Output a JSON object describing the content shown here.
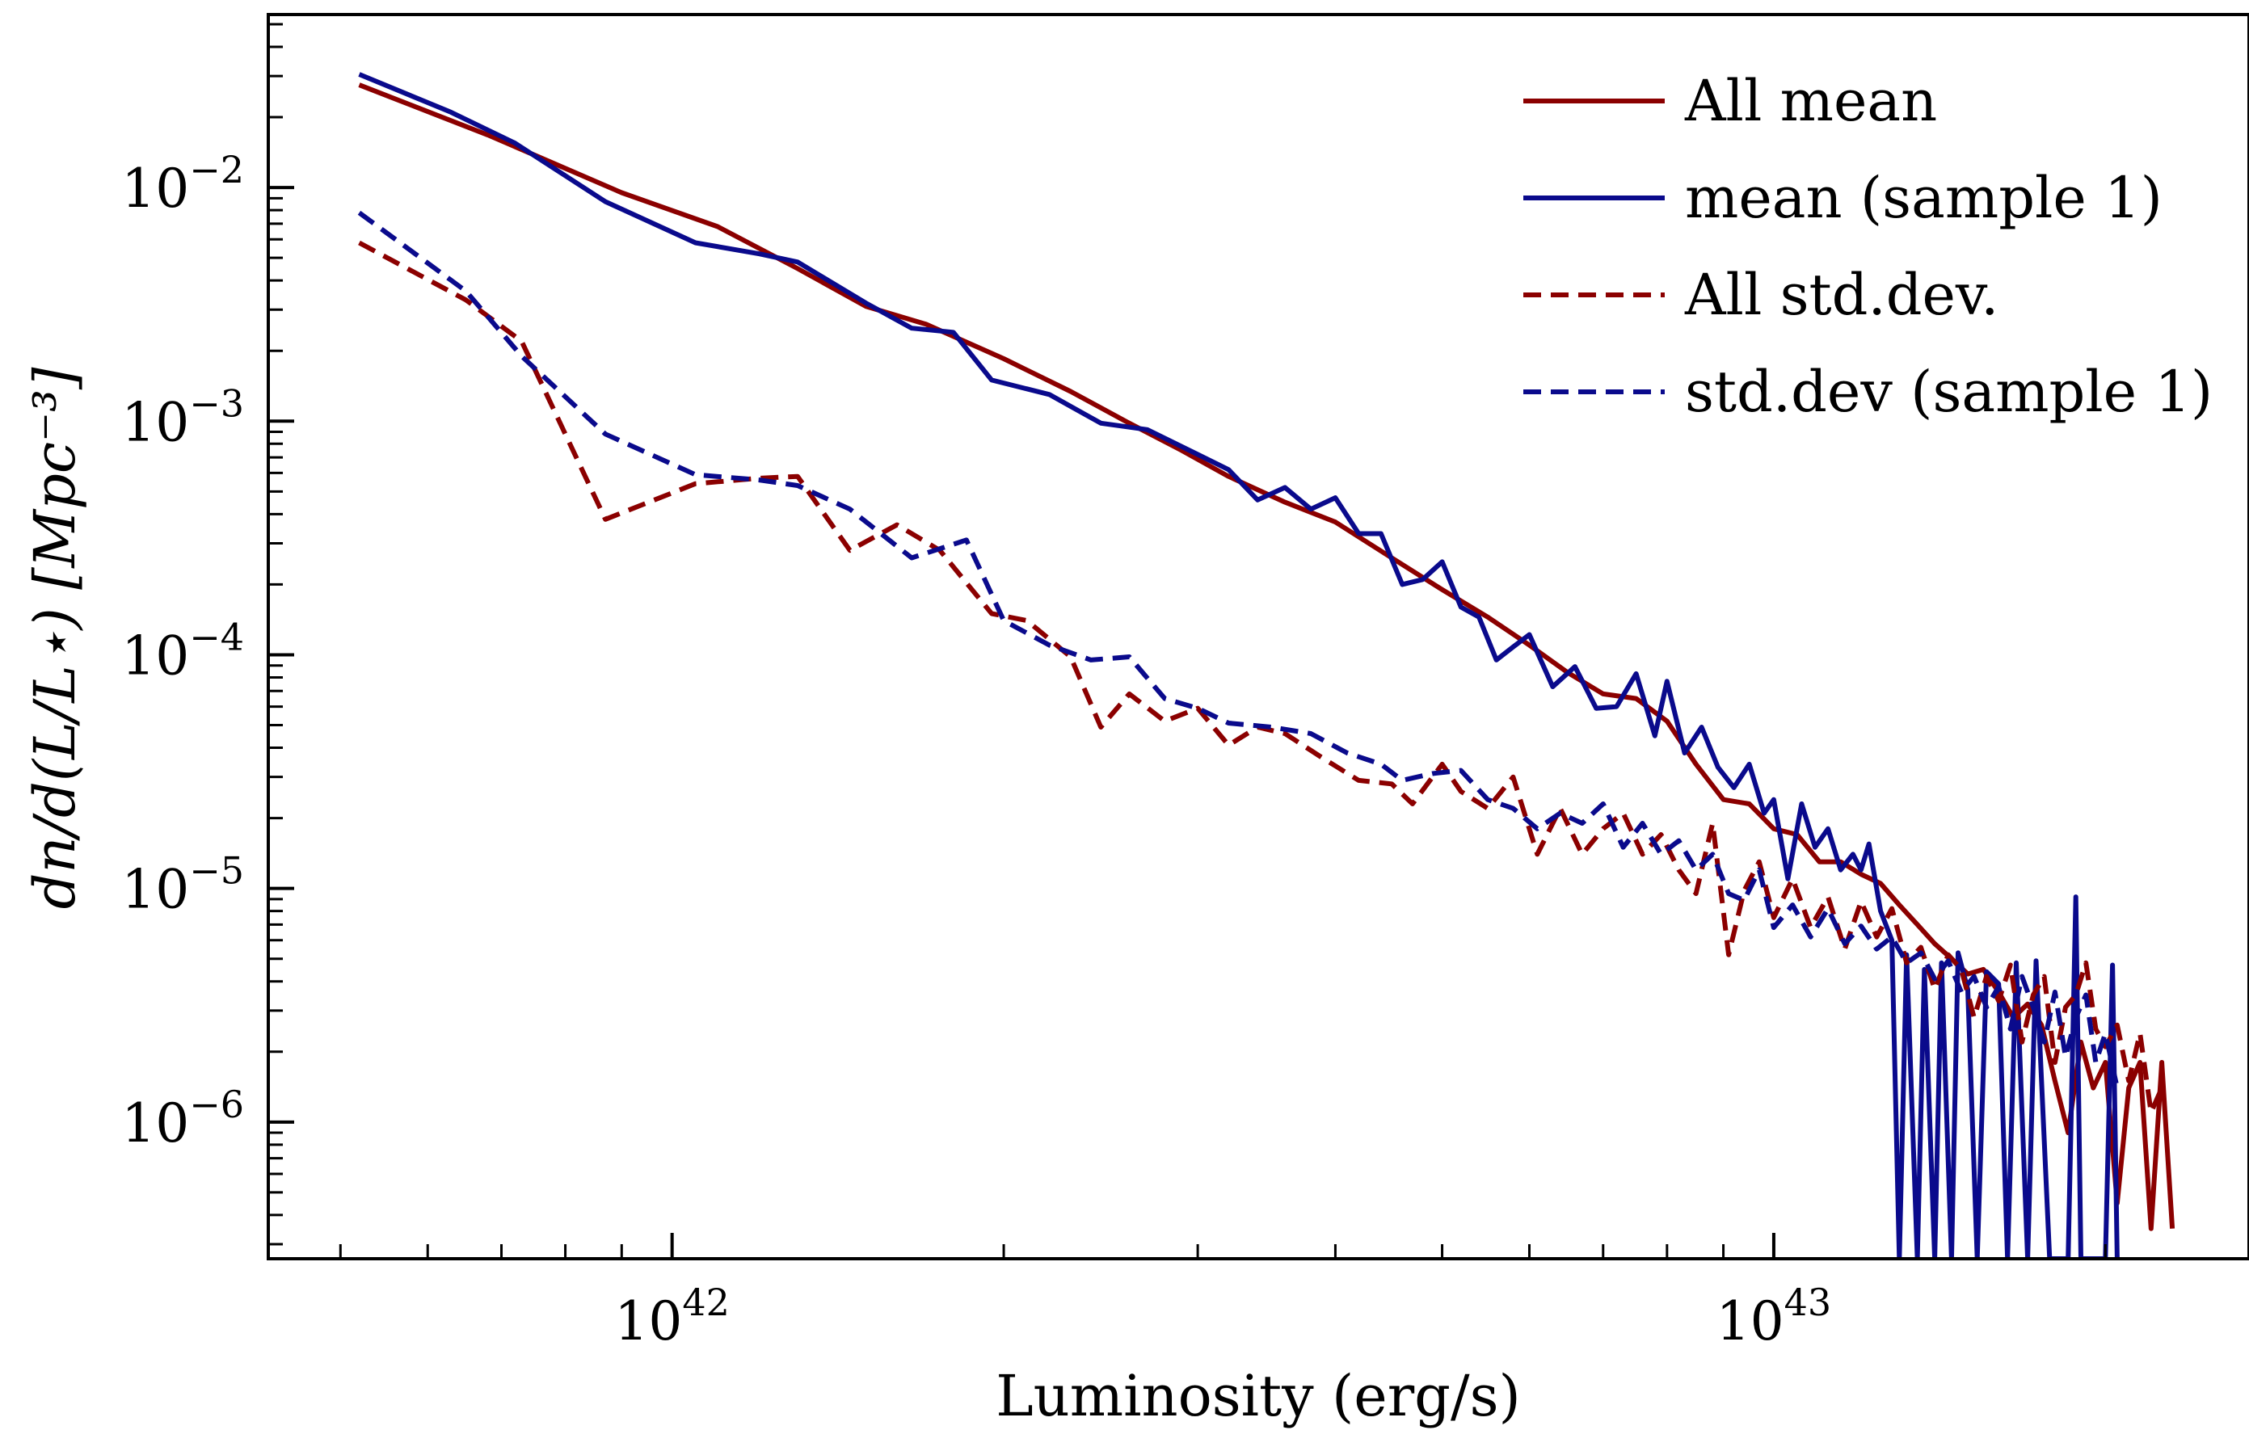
{
  "chart_data": {
    "type": "line",
    "xlabel": "Luminosity (erg/s)",
    "ylabel": "dn/d(L/L⋆) [Mpc⁻³]",
    "xscale": "log",
    "yscale": "log",
    "xlim": [
      4.3e+41,
      2.7e+43
    ],
    "ylim": [
      2.6e-07,
      0.055
    ],
    "x_ticks": [
      {
        "base": "10",
        "exp": "42",
        "value": 1e+42
      },
      {
        "base": "10",
        "exp": "43",
        "value": 1e+43
      }
    ],
    "y_ticks": [
      {
        "base": "10",
        "exp": "−2",
        "value": 0.01
      },
      {
        "base": "10",
        "exp": "−3",
        "value": 0.001
      },
      {
        "base": "10",
        "exp": "−4",
        "value": 0.0001
      },
      {
        "base": "10",
        "exp": "−5",
        "value": 1e-05
      },
      {
        "base": "10",
        "exp": "−6",
        "value": 1e-06
      }
    ],
    "legend_position": "top-right",
    "grid": false,
    "series": [
      {
        "name": "All mean",
        "color": "#8b0000",
        "dash": "solid",
        "points": [
          [
            5.2e+41,
            0.0275
          ],
          [
            6.8e+41,
            0.0168
          ],
          [
            9e+41,
            0.0095
          ],
          [
            1.1e+42,
            0.0068
          ],
          [
            1.3e+42,
            0.0045
          ],
          [
            1.5e+42,
            0.0031
          ],
          [
            1.7e+42,
            0.0026
          ],
          [
            2e+42,
            0.00185
          ],
          [
            2.3e+42,
            0.00134
          ],
          [
            2.6e+42,
            0.00098
          ],
          [
            2.9e+42,
            0.00075
          ],
          [
            3.2e+42,
            0.00058
          ],
          [
            3.6e+42,
            0.00045
          ],
          [
            4e+42,
            0.00037
          ],
          [
            4.5e+42,
            0.00026
          ],
          [
            5e+42,
            0.00019
          ],
          [
            5.5e+42,
            0.000145
          ],
          [
            6e+42,
            0.00011
          ],
          [
            6.5e+42,
            8.4e-05
          ],
          [
            7e+42,
            6.8e-05
          ],
          [
            7.5e+42,
            6.5e-05
          ],
          [
            8e+42,
            5.2e-05
          ],
          [
            8.5e+42,
            3.4e-05
          ],
          [
            9e+42,
            2.4e-05
          ],
          [
            9.5e+42,
            2.3e-05
          ],
          [
            1e+43,
            1.8e-05
          ],
          [
            1.05e+43,
            1.7e-05
          ],
          [
            1.1e+43,
            1.3e-05
          ],
          [
            1.15e+43,
            1.3e-05
          ],
          [
            1.2e+43,
            1.15e-05
          ],
          [
            1.25e+43,
            1.05e-05
          ],
          [
            1.3e+43,
            8.5e-06
          ],
          [
            1.35e+43,
            7e-06
          ],
          [
            1.4e+43,
            5.8e-06
          ],
          [
            1.45e+43,
            5e-06
          ],
          [
            1.5e+43,
            4.3e-06
          ],
          [
            1.55e+43,
            4.5e-06
          ],
          [
            1.6e+43,
            3.6e-06
          ],
          [
            1.65e+43,
            2.8e-06
          ],
          [
            1.7e+43,
            3.2e-06
          ],
          [
            1.75e+43,
            2.6e-06
          ],
          [
            1.8e+43,
            1.5e-06
          ],
          [
            1.85e+43,
            9e-07
          ],
          [
            1.9e+43,
            2.2e-06
          ],
          [
            1.95e+43,
            1.4e-06
          ],
          [
            2e+43,
            1.8e-06
          ],
          [
            2.05e+43,
            4.5e-07
          ],
          [
            2.1e+43,
            1.4e-06
          ],
          [
            2.15e+43,
            1.8e-06
          ],
          [
            2.2e+43,
            3.5e-07
          ],
          [
            2.25e+43,
            1.8e-06
          ],
          [
            2.3e+43,
            3.5e-07
          ]
        ]
      },
      {
        "name": "mean (sample 1)",
        "color": "#0a0a8c",
        "dash": "solid",
        "points": [
          [
            5.2e+41,
            0.0305
          ],
          [
            6.3e+41,
            0.021
          ],
          [
            7.2e+41,
            0.0155
          ],
          [
            8.7e+41,
            0.0087
          ],
          [
            1.05e+42,
            0.0058
          ],
          [
            1.2e+42,
            0.0052
          ],
          [
            1.3e+42,
            0.0048
          ],
          [
            1.5e+42,
            0.0032
          ],
          [
            1.65e+42,
            0.0025
          ],
          [
            1.8e+42,
            0.0024
          ],
          [
            1.95e+42,
            0.0015
          ],
          [
            2.2e+42,
            0.0013
          ],
          [
            2.45e+42,
            0.00098
          ],
          [
            2.7e+42,
            0.00092
          ],
          [
            3e+42,
            0.00072
          ],
          [
            3.2e+42,
            0.00062
          ],
          [
            3.4e+42,
            0.00046
          ],
          [
            3.6e+42,
            0.00052
          ],
          [
            3.8e+42,
            0.00042
          ],
          [
            4e+42,
            0.00047
          ],
          [
            4.2e+42,
            0.00033
          ],
          [
            4.4e+42,
            0.00033
          ],
          [
            4.6e+42,
            0.0002
          ],
          [
            4.8e+42,
            0.00021
          ],
          [
            5e+42,
            0.00025
          ],
          [
            5.2e+42,
            0.00016
          ],
          [
            5.4e+42,
            0.000145
          ],
          [
            5.6e+42,
            9.5e-05
          ],
          [
            5.8e+42,
            0.000108
          ],
          [
            6e+42,
            0.000122
          ],
          [
            6.3e+42,
            7.3e-05
          ],
          [
            6.6e+42,
            8.9e-05
          ],
          [
            6.9e+42,
            5.9e-05
          ],
          [
            7.2e+42,
            6e-05
          ],
          [
            7.5e+42,
            8.3e-05
          ],
          [
            7.8e+42,
            4.5e-05
          ],
          [
            8e+42,
            7.7e-05
          ],
          [
            8.3e+42,
            3.8e-05
          ],
          [
            8.6e+42,
            4.9e-05
          ],
          [
            8.9e+42,
            3.3e-05
          ],
          [
            9.2e+42,
            2.7e-05
          ],
          [
            9.5e+42,
            3.4e-05
          ],
          [
            9.8e+42,
            2.1e-05
          ],
          [
            1e+43,
            2.4e-05
          ],
          [
            1.03e+43,
            1.1e-05
          ],
          [
            1.06e+43,
            2.3e-05
          ],
          [
            1.09e+43,
            1.5e-05
          ],
          [
            1.12e+43,
            1.8e-05
          ],
          [
            1.15e+43,
            1.2e-05
          ],
          [
            1.18e+43,
            1.4e-05
          ],
          [
            1.2e+43,
            1.2e-05
          ],
          [
            1.22e+43,
            1.55e-05
          ],
          [
            1.25e+43,
            8e-06
          ],
          [
            1.28e+43,
            6e-06
          ],
          [
            1.3e+43,
            2.6e-07
          ],
          [
            1.32e+43,
            5.2e-06
          ],
          [
            1.35e+43,
            2.6e-07
          ],
          [
            1.37e+43,
            4.5e-06
          ],
          [
            1.4e+43,
            2.6e-07
          ],
          [
            1.42e+43,
            4.8e-06
          ],
          [
            1.45e+43,
            2.6e-07
          ],
          [
            1.47e+43,
            5.3e-06
          ],
          [
            1.5e+43,
            3.7e-06
          ],
          [
            1.53e+43,
            2.6e-07
          ],
          [
            1.56e+43,
            4.4e-06
          ],
          [
            1.6e+43,
            3.9e-06
          ],
          [
            1.63e+43,
            2.6e-07
          ],
          [
            1.66e+43,
            4.8e-06
          ],
          [
            1.7e+43,
            2.6e-07
          ],
          [
            1.73e+43,
            4.9e-06
          ],
          [
            1.78e+43,
            2.6e-07
          ],
          [
            1.85e+43,
            2.6e-07
          ],
          [
            1.88e+43,
            9.2e-06
          ],
          [
            1.9e+43,
            2.6e-07
          ],
          [
            2e+43,
            2.6e-07
          ],
          [
            2.03e+43,
            4.7e-06
          ],
          [
            2.05e+43,
            2.6e-07
          ]
        ]
      },
      {
        "name": "All std.dev.",
        "color": "#8b0000",
        "dash": "dashed",
        "points": [
          [
            5.2e+41,
            0.0058
          ],
          [
            6.5e+41,
            0.0033
          ],
          [
            7.3e+41,
            0.0022
          ],
          [
            8.7e+41,
            0.00038
          ],
          [
            1.05e+42,
            0.00054
          ],
          [
            1.2e+42,
            0.00057
          ],
          [
            1.3e+42,
            0.00058
          ],
          [
            1.45e+42,
            0.00028
          ],
          [
            1.6e+42,
            0.00036
          ],
          [
            1.75e+42,
            0.00028
          ],
          [
            1.95e+42,
            0.00015
          ],
          [
            2.1e+42,
            0.00014
          ],
          [
            2.3e+42,
            9.8e-05
          ],
          [
            2.45e+42,
            4.9e-05
          ],
          [
            2.6e+42,
            6.8e-05
          ],
          [
            2.8e+42,
            5.2e-05
          ],
          [
            3e+42,
            5.9e-05
          ],
          [
            3.2e+42,
            4.1e-05
          ],
          [
            3.4e+42,
            4.9e-05
          ],
          [
            3.6e+42,
            4.6e-05
          ],
          [
            3.9e+42,
            3.6e-05
          ],
          [
            4.2e+42,
            2.9e-05
          ],
          [
            4.5e+42,
            2.8e-05
          ],
          [
            4.7e+42,
            2.3e-05
          ],
          [
            5e+42,
            3.4e-05
          ],
          [
            5.2e+42,
            2.6e-05
          ],
          [
            5.5e+42,
            2.2e-05
          ],
          [
            5.8e+42,
            3e-05
          ],
          [
            6.1e+42,
            1.4e-05
          ],
          [
            6.4e+42,
            2.2e-05
          ],
          [
            6.7e+42,
            1.4e-05
          ],
          [
            7e+42,
            1.8e-05
          ],
          [
            7.3e+42,
            2.1e-05
          ],
          [
            7.6e+42,
            1.4e-05
          ],
          [
            7.9e+42,
            1.7e-05
          ],
          [
            8.2e+42,
            1.2e-05
          ],
          [
            8.5e+42,
            9.5e-06
          ],
          [
            8.8e+42,
            1.9e-05
          ],
          [
            9.1e+42,
            5.2e-06
          ],
          [
            9.4e+42,
            9.8e-06
          ],
          [
            9.7e+42,
            1.3e-05
          ],
          [
            1e+43,
            7.5e-06
          ],
          [
            1.04e+43,
            1.1e-05
          ],
          [
            1.08e+43,
            6.8e-06
          ],
          [
            1.12e+43,
            9.2e-06
          ],
          [
            1.16e+43,
            5.5e-06
          ],
          [
            1.2e+43,
            8.8e-06
          ],
          [
            1.24e+43,
            6.2e-06
          ],
          [
            1.28e+43,
            8.2e-06
          ],
          [
            1.32e+43,
            4.8e-06
          ],
          [
            1.36e+43,
            5.6e-06
          ],
          [
            1.4e+43,
            3.7e-06
          ],
          [
            1.44e+43,
            5.2e-06
          ],
          [
            1.48e+43,
            4.5e-06
          ],
          [
            1.52e+43,
            2.8e-06
          ],
          [
            1.56e+43,
            4.2e-06
          ],
          [
            1.6e+43,
            3.3e-06
          ],
          [
            1.64e+43,
            4.7e-06
          ],
          [
            1.68e+43,
            2.2e-06
          ],
          [
            1.72e+43,
            3.5e-06
          ],
          [
            1.76e+43,
            4.2e-06
          ],
          [
            1.8e+43,
            1.8e-06
          ],
          [
            1.84e+43,
            3.1e-06
          ],
          [
            1.88e+43,
            3.5e-06
          ],
          [
            1.92e+43,
            4.8e-06
          ],
          [
            1.96e+43,
            2.5e-06
          ],
          [
            2e+43,
            2.1e-06
          ],
          [
            2.05e+43,
            2.6e-06
          ],
          [
            2.1e+43,
            1.5e-06
          ],
          [
            2.15e+43,
            2.4e-06
          ],
          [
            2.2e+43,
            1.1e-06
          ],
          [
            2.25e+43,
            1.4e-06
          ]
        ]
      },
      {
        "name": "std.dev (sample 1)",
        "color": "#0a0a8c",
        "dash": "dashed",
        "points": [
          [
            5.2e+41,
            0.0078
          ],
          [
            6.5e+41,
            0.0036
          ],
          [
            7.3e+41,
            0.0019
          ],
          [
            8.7e+41,
            0.00088
          ],
          [
            1.05e+42,
            0.00059
          ],
          [
            1.2e+42,
            0.00056
          ],
          [
            1.3e+42,
            0.00053
          ],
          [
            1.45e+42,
            0.00042
          ],
          [
            1.65e+42,
            0.00026
          ],
          [
            1.85e+42,
            0.00031
          ],
          [
            2e+42,
            0.00014
          ],
          [
            2.2e+42,
            0.00011
          ],
          [
            2.4e+42,
            9.5e-05
          ],
          [
            2.6e+42,
            9.8e-05
          ],
          [
            2.8e+42,
            6.5e-05
          ],
          [
            3e+42,
            5.9e-05
          ],
          [
            3.2e+42,
            5.1e-05
          ],
          [
            3.5e+42,
            4.9e-05
          ],
          [
            3.8e+42,
            4.6e-05
          ],
          [
            4.1e+42,
            3.8e-05
          ],
          [
            4.4e+42,
            3.4e-05
          ],
          [
            4.6e+42,
            2.9e-05
          ],
          [
            4.9e+42,
            3.1e-05
          ],
          [
            5.2e+42,
            3.2e-05
          ],
          [
            5.5e+42,
            2.4e-05
          ],
          [
            5.8e+42,
            2.2e-05
          ],
          [
            6.1e+42,
            1.8e-05
          ],
          [
            6.4e+42,
            2.1e-05
          ],
          [
            6.7e+42,
            1.9e-05
          ],
          [
            7e+42,
            2.3e-05
          ],
          [
            7.3e+42,
            1.5e-05
          ],
          [
            7.6e+42,
            1.9e-05
          ],
          [
            7.9e+42,
            1.4e-05
          ],
          [
            8.2e+42,
            1.6e-05
          ],
          [
            8.5e+42,
            1.2e-05
          ],
          [
            8.8e+42,
            1.4e-05
          ],
          [
            9.1e+42,
            9.5e-06
          ],
          [
            9.4e+42,
            8.9e-06
          ],
          [
            9.7e+42,
            1.2e-05
          ],
          [
            1e+43,
            6.8e-06
          ],
          [
            1.04e+43,
            8.5e-06
          ],
          [
            1.08e+43,
            6.2e-06
          ],
          [
            1.12e+43,
            8.2e-06
          ],
          [
            1.16e+43,
            5.8e-06
          ],
          [
            1.2e+43,
            6.9e-06
          ],
          [
            1.24e+43,
            5.5e-06
          ],
          [
            1.28e+43,
            6.2e-06
          ],
          [
            1.32e+43,
            4.8e-06
          ],
          [
            1.36e+43,
            5.3e-06
          ],
          [
            1.4e+43,
            4.1e-06
          ],
          [
            1.44e+43,
            4.9e-06
          ],
          [
            1.48e+43,
            3.6e-06
          ],
          [
            1.52e+43,
            4.2e-06
          ],
          [
            1.56e+43,
            3.1e-06
          ],
          [
            1.6e+43,
            3.8e-06
          ],
          [
            1.64e+43,
            2.5e-06
          ],
          [
            1.68e+43,
            4.2e-06
          ],
          [
            1.72e+43,
            3.1e-06
          ],
          [
            1.76e+43,
            2.2e-06
          ],
          [
            1.8e+43,
            3.6e-06
          ],
          [
            1.84e+43,
            1.9e-06
          ],
          [
            1.88e+43,
            2.8e-06
          ],
          [
            1.92e+43,
            3.5e-06
          ],
          [
            1.96e+43,
            1.8e-06
          ],
          [
            2e+43,
            2.4e-06
          ],
          [
            2.05e+43,
            1.4e-06
          ]
        ]
      }
    ]
  }
}
